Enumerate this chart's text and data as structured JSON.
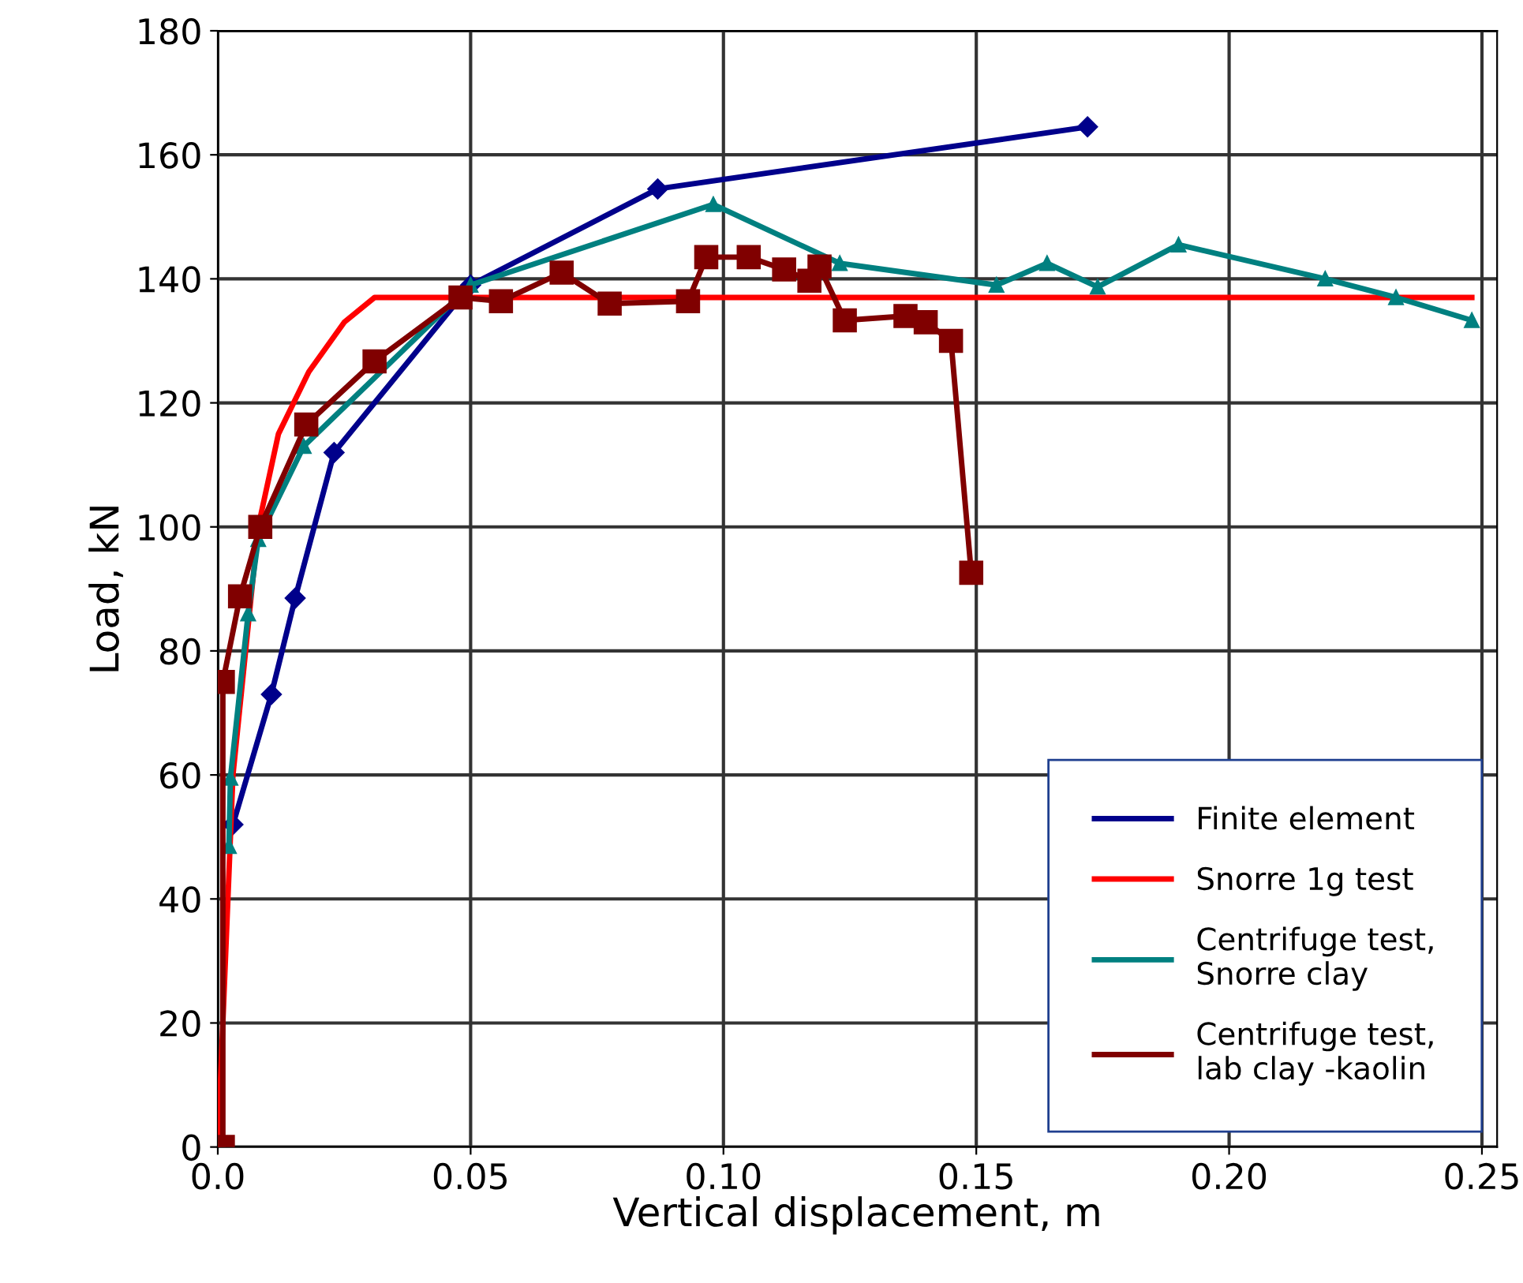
{
  "chart_data": {
    "type": "line",
    "xlabel": "Vertical displacement, m",
    "ylabel": "Load, kN",
    "xlim": [
      0,
      0.253
    ],
    "xticks": [
      {
        "value": 0,
        "label": "0.0"
      },
      0.05,
      {
        "value": 0.1,
        "label": "0.10"
      },
      0.15,
      {
        "value": 0.2,
        "label": "0.20"
      },
      0.25
    ],
    "ylim": [
      0,
      180
    ],
    "yticks": [
      0,
      20,
      40,
      60,
      80,
      100,
      120,
      140,
      160,
      180
    ],
    "grid": true,
    "legend": "bottom right",
    "series": [
      {
        "name": "Finite element",
        "color": "#00008b",
        "marker": "diamond",
        "x": [
          0.003,
          0.0106,
          0.0153,
          0.023,
          0.05,
          0.087,
          0.172
        ],
        "values": [
          52,
          73,
          88.5,
          112,
          139,
          154.5,
          164.5
        ]
      },
      {
        "name": "Snorre 1g test",
        "color": "#ff0000",
        "marker": "none",
        "x": [
          0,
          0.003,
          0.008,
          0.012,
          0.018,
          0.025,
          0.031,
          0.248
        ],
        "values": [
          0,
          60,
          100,
          115,
          125,
          133,
          137,
          137
        ]
      },
      {
        "name": "Centrifuge test,\nSnorre clay",
        "color": "#008080",
        "marker": "triangle",
        "x": [
          0.0022,
          0.0025,
          0.006,
          0.008,
          0.017,
          0.05,
          0.098,
          0.123,
          0.154,
          0.164,
          0.174,
          0.19,
          0.219,
          0.233,
          0.248
        ],
        "values": [
          48.5,
          59.5,
          86,
          98,
          113,
          139,
          152,
          142.5,
          139,
          142.5,
          138.7,
          145.5,
          140,
          137,
          133.3
        ]
      },
      {
        "name": "Centrifuge test,\nlab clay -kaolin",
        "color": "#800000",
        "marker": "square",
        "x": [
          0.001,
          0.001,
          0.0044,
          0.0084,
          0.0175,
          0.031,
          0.048,
          0.056,
          0.068,
          0.0775,
          0.093,
          0.0966,
          0.105,
          0.112,
          0.117,
          0.119,
          0.124,
          0.136,
          0.14,
          0.145,
          0.149
        ],
        "values": [
          0,
          75,
          88.8,
          100,
          116.5,
          126.7,
          137,
          136.4,
          141,
          136,
          136.4,
          143.5,
          143.5,
          141.5,
          139.7,
          142,
          133.3,
          134,
          133,
          130,
          92.6
        ]
      }
    ]
  }
}
